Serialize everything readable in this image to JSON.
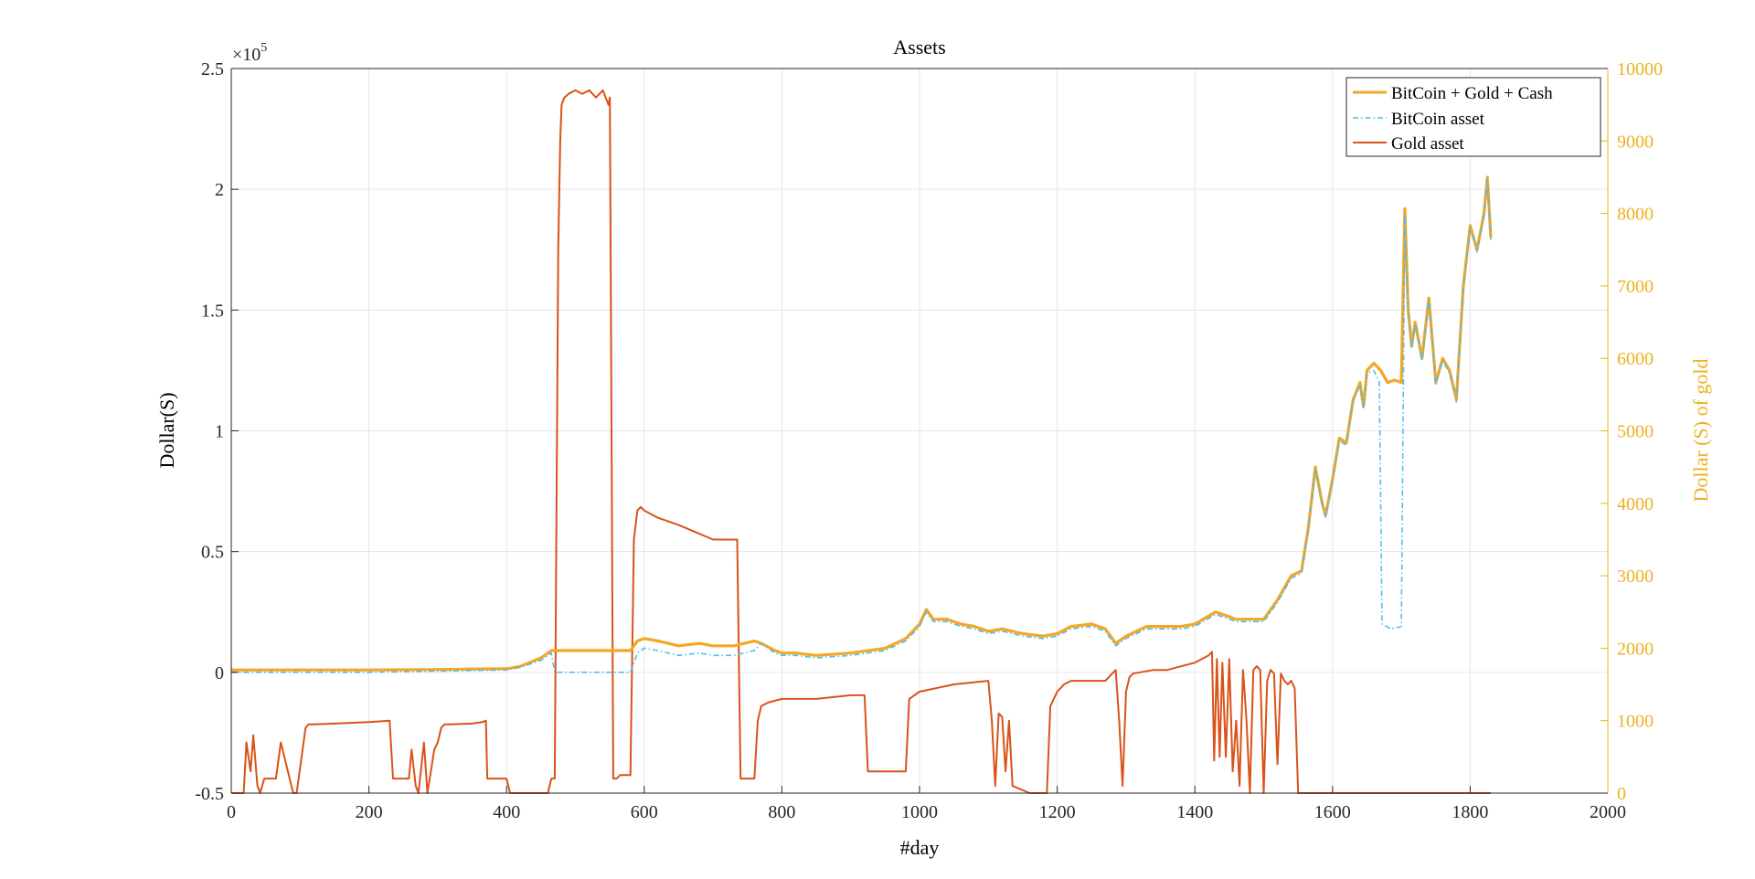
{
  "chart_data": {
    "type": "line",
    "title": "Assets",
    "xlabel": "#day",
    "ylabel": "Dollar(S)",
    "y2label": "Dollar (S) of gold",
    "xlim": [
      0,
      2000
    ],
    "ylim": [
      -0.5,
      2.5
    ],
    "y_exponent": "×10",
    "y_exponent_power": "5",
    "y2lim": [
      0,
      10000
    ],
    "xticks": [
      0,
      200,
      400,
      600,
      800,
      1000,
      1200,
      1400,
      1600,
      1800,
      2000
    ],
    "xtick_labels": [
      "0",
      "200",
      "400",
      "600",
      "800",
      "1000",
      "1200",
      "1400",
      "1600",
      "1800",
      "2000"
    ],
    "yticks": [
      -0.5,
      0,
      0.5,
      1,
      1.5,
      2,
      2.5
    ],
    "ytick_labels": [
      "-0.5",
      "0",
      "0.5",
      "1",
      "1.5",
      "2",
      "2.5"
    ],
    "y2ticks": [
      0,
      1000,
      2000,
      3000,
      4000,
      5000,
      6000,
      7000,
      8000,
      9000,
      10000
    ],
    "y2tick_labels": [
      "0",
      "1000",
      "2000",
      "3000",
      "4000",
      "5000",
      "6000",
      "7000",
      "8000",
      "9000",
      "10000"
    ],
    "grid": true,
    "legend_position": "top-right",
    "colors": {
      "total": "#F5A623",
      "bitcoin": "#4DBEEE",
      "gold": "#D95319",
      "right_axis": "#EDB120",
      "grid": "#e6e6e6",
      "axis": "#262626"
    },
    "series": [
      {
        "name": "BitCoin + Gold + Cash",
        "axis": "left",
        "style": "solid",
        "x": [
          0,
          100,
          200,
          300,
          400,
          420,
          450,
          465,
          470,
          500,
          550,
          580,
          590,
          600,
          620,
          650,
          680,
          700,
          730,
          760,
          770,
          790,
          800,
          820,
          850,
          900,
          950,
          980,
          1000,
          1010,
          1020,
          1040,
          1060,
          1080,
          1100,
          1120,
          1150,
          1180,
          1200,
          1220,
          1250,
          1270,
          1285,
          1300,
          1330,
          1350,
          1380,
          1400,
          1430,
          1450,
          1460,
          1500,
          1520,
          1540,
          1555,
          1565,
          1575,
          1585,
          1590,
          1600,
          1610,
          1620,
          1630,
          1640,
          1645,
          1650,
          1660,
          1670,
          1680,
          1690,
          1700,
          1705,
          1710,
          1715,
          1720,
          1730,
          1740,
          1750,
          1760,
          1770,
          1780,
          1790,
          1800,
          1810,
          1820,
          1825,
          1830
        ],
        "y": [
          0.01,
          0.01,
          0.01,
          0.012,
          0.015,
          0.025,
          0.06,
          0.09,
          0.09,
          0.09,
          0.09,
          0.09,
          0.13,
          0.14,
          0.13,
          0.11,
          0.12,
          0.11,
          0.11,
          0.13,
          0.12,
          0.09,
          0.08,
          0.08,
          0.07,
          0.08,
          0.1,
          0.14,
          0.2,
          0.26,
          0.22,
          0.22,
          0.2,
          0.19,
          0.17,
          0.18,
          0.16,
          0.15,
          0.16,
          0.19,
          0.2,
          0.18,
          0.12,
          0.15,
          0.19,
          0.19,
          0.19,
          0.2,
          0.25,
          0.23,
          0.22,
          0.22,
          0.3,
          0.4,
          0.42,
          0.6,
          0.85,
          0.7,
          0.65,
          0.8,
          0.97,
          0.95,
          1.13,
          1.2,
          1.1,
          1.25,
          1.28,
          1.25,
          1.2,
          1.21,
          1.2,
          1.92,
          1.5,
          1.35,
          1.45,
          1.3,
          1.55,
          1.2,
          1.3,
          1.25,
          1.13,
          1.6,
          1.85,
          1.75,
          1.9,
          2.05,
          1.8
        ]
      },
      {
        "name": "BitCoin asset",
        "axis": "left",
        "style": "dashdot",
        "x": [
          0,
          100,
          200,
          300,
          400,
          420,
          450,
          465,
          470,
          480,
          500,
          550,
          580,
          590,
          600,
          620,
          650,
          680,
          700,
          730,
          760,
          770,
          790,
          800,
          820,
          850,
          900,
          950,
          980,
          1000,
          1010,
          1020,
          1040,
          1060,
          1080,
          1100,
          1120,
          1150,
          1180,
          1200,
          1220,
          1250,
          1270,
          1285,
          1300,
          1330,
          1350,
          1380,
          1400,
          1430,
          1450,
          1460,
          1500,
          1520,
          1540,
          1555,
          1565,
          1575,
          1585,
          1590,
          1600,
          1610,
          1620,
          1630,
          1640,
          1645,
          1650,
          1660,
          1668,
          1672,
          1685,
          1700,
          1705,
          1710,
          1715,
          1720,
          1730,
          1740,
          1750,
          1760,
          1770,
          1780,
          1790,
          1800,
          1810,
          1820,
          1825,
          1830
        ],
        "y": [
          0.0,
          0.0,
          0.0,
          0.005,
          0.01,
          0.02,
          0.05,
          0.08,
          0.0,
          0.0,
          0.0,
          0.0,
          0.0,
          0.08,
          0.1,
          0.09,
          0.07,
          0.08,
          0.07,
          0.07,
          0.09,
          0.12,
          0.08,
          0.07,
          0.07,
          0.06,
          0.07,
          0.09,
          0.13,
          0.19,
          0.25,
          0.21,
          0.21,
          0.19,
          0.18,
          0.16,
          0.17,
          0.15,
          0.14,
          0.15,
          0.18,
          0.19,
          0.17,
          0.11,
          0.14,
          0.18,
          0.18,
          0.18,
          0.19,
          0.24,
          0.22,
          0.21,
          0.21,
          0.29,
          0.39,
          0.41,
          0.59,
          0.84,
          0.69,
          0.64,
          0.79,
          0.96,
          0.94,
          1.12,
          1.19,
          1.09,
          1.24,
          1.25,
          1.2,
          0.2,
          0.18,
          0.19,
          1.9,
          1.49,
          1.34,
          1.44,
          1.29,
          1.54,
          1.19,
          1.29,
          1.24,
          1.12,
          1.59,
          1.84,
          1.74,
          1.89,
          2.04,
          1.79
        ]
      },
      {
        "name": "Gold asset",
        "axis": "right",
        "style": "solid",
        "x": [
          0,
          18,
          22,
          28,
          32,
          38,
          42,
          48,
          58,
          65,
          72,
          90,
          95,
          108,
          112,
          120,
          150,
          200,
          230,
          235,
          258,
          262,
          268,
          272,
          280,
          285,
          290,
          295,
          300,
          305,
          310,
          320,
          350,
          365,
          370,
          372,
          400,
          405,
          460,
          465,
          470,
          475,
          478,
          480,
          484,
          490,
          500,
          510,
          520,
          530,
          540,
          548,
          550,
          555,
          560,
          565,
          580,
          585,
          590,
          595,
          600,
          620,
          650,
          700,
          735,
          740,
          745,
          760,
          765,
          770,
          780,
          800,
          850,
          900,
          920,
          925,
          980,
          985,
          1000,
          1050,
          1100,
          1105,
          1110,
          1115,
          1120,
          1125,
          1130,
          1135,
          1160,
          1165,
          1180,
          1185,
          1190,
          1200,
          1210,
          1220,
          1250,
          1270,
          1285,
          1290,
          1295,
          1300,
          1305,
          1310,
          1340,
          1360,
          1380,
          1400,
          1420,
          1425,
          1428,
          1432,
          1436,
          1440,
          1445,
          1450,
          1455,
          1460,
          1465,
          1470,
          1475,
          1480,
          1485,
          1490,
          1495,
          1500,
          1505,
          1510,
          1515,
          1520,
          1525,
          1530,
          1535,
          1540,
          1545,
          1550,
          1555,
          1600,
          1650,
          1700,
          1750,
          1800,
          1830
        ],
        "y": [
          0,
          0,
          700,
          300,
          800,
          100,
          0,
          200,
          200,
          200,
          700,
          0,
          0,
          900,
          950,
          950,
          960,
          980,
          1000,
          200,
          200,
          600,
          100,
          0,
          700,
          0,
          300,
          600,
          700,
          900,
          950,
          950,
          960,
          980,
          1000,
          200,
          200,
          0,
          0,
          200,
          200,
          7500,
          9000,
          9500,
          9600,
          9650,
          9700,
          9650,
          9700,
          9600,
          9700,
          9500,
          9600,
          200,
          200,
          250,
          250,
          3500,
          3900,
          3950,
          3900,
          3800,
          3700,
          3500,
          3500,
          200,
          200,
          200,
          1000,
          1200,
          1250,
          1300,
          1300,
          1350,
          1350,
          300,
          300,
          1300,
          1400,
          1500,
          1550,
          1000,
          100,
          1100,
          1050,
          300,
          1000,
          100,
          0,
          0,
          0,
          0,
          1200,
          1400,
          1500,
          1550,
          1550,
          1550,
          1700,
          1000,
          100,
          1400,
          1600,
          1650,
          1700,
          1700,
          1750,
          1800,
          1900,
          1950,
          450,
          1850,
          500,
          1800,
          500,
          1850,
          300,
          1000,
          100,
          1700,
          1000,
          0,
          1700,
          1750,
          1700,
          0,
          1550,
          1700,
          1650,
          400,
          1650,
          1550,
          1500,
          1550,
          1450,
          0,
          0,
          0,
          0,
          0,
          0,
          0,
          0
        ]
      }
    ]
  }
}
